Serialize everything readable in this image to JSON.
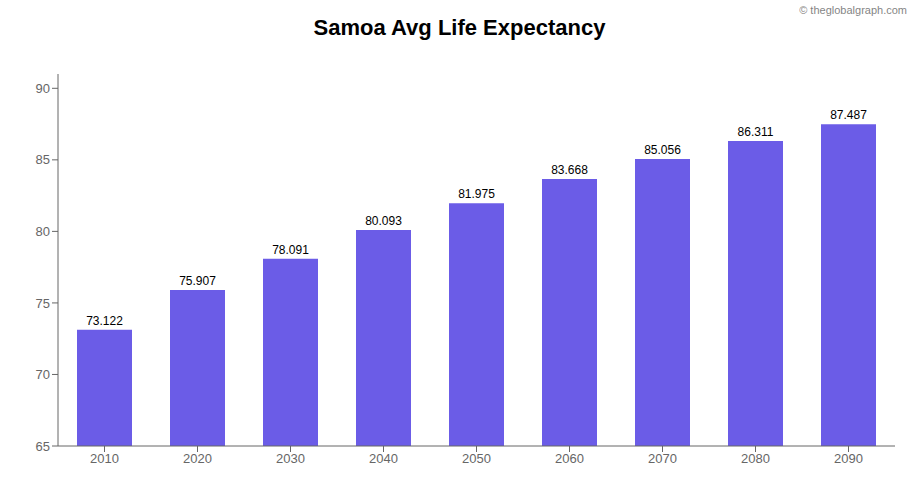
{
  "chart_data": {
    "type": "bar",
    "title": "Samoa Avg Life Expectancy",
    "annotations": [
      "© theglobalgraph.com"
    ],
    "categories": [
      "2010",
      "2020",
      "2030",
      "2040",
      "2050",
      "2060",
      "2070",
      "2080",
      "2090"
    ],
    "values": [
      73.122,
      75.907,
      78.091,
      80.093,
      81.975,
      83.668,
      85.056,
      86.311,
      87.487
    ],
    "color": "#6B5CE7",
    "ylim": [
      65,
      91
    ],
    "yticks": [
      65,
      70,
      75,
      80,
      85,
      90
    ],
    "grid": false,
    "data_labels": true
  }
}
